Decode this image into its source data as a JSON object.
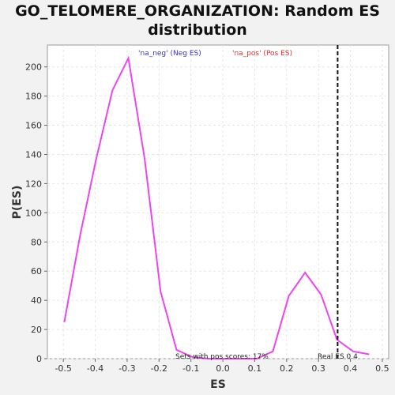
{
  "chart_data": {
    "type": "line",
    "title": "GO_TELOMERE_ORGANIZATION: Random ES distribution",
    "xlabel": "ES",
    "ylabel": "P(ES)",
    "xlim": [
      -0.55,
      0.52
    ],
    "ylim": [
      0,
      215
    ],
    "xticks": [
      "-0.5",
      "-0.4",
      "-0.3",
      "-0.2",
      "-0.1",
      "0.0",
      "0.1",
      "0.2",
      "0.3",
      "0.4",
      "0.5"
    ],
    "xtick_values": [
      -0.5,
      -0.4,
      -0.3,
      -0.2,
      -0.1,
      0.0,
      0.1,
      0.2,
      0.3,
      0.4,
      0.5
    ],
    "yticks": [
      "0",
      "20",
      "40",
      "60",
      "80",
      "100",
      "120",
      "140",
      "160",
      "180",
      "200"
    ],
    "ytick_values": [
      0,
      20,
      40,
      60,
      80,
      100,
      120,
      140,
      160,
      180,
      200
    ],
    "grid": true,
    "legend": [
      {
        "label": "'na_neg' (Neg ES)",
        "color": "#3333cc"
      },
      {
        "label": "'na_pos' (Pos ES)",
        "color": "#e03030"
      }
    ],
    "series": [
      {
        "color": "#ee44ee",
        "x": [
          -0.497,
          -0.447,
          -0.397,
          -0.346,
          -0.296,
          -0.245,
          -0.195,
          -0.145,
          -0.094,
          -0.044,
          0.006,
          0.056,
          0.107,
          0.157,
          0.207,
          0.258,
          0.308,
          0.358,
          0.409,
          0.459
        ],
        "values": [
          25,
          85,
          137,
          184,
          206,
          137,
          46,
          6,
          1,
          0,
          0,
          0,
          0,
          5,
          43,
          59,
          44,
          13,
          5,
          3
        ]
      }
    ],
    "real_es": 0.36,
    "annotations": {
      "pos_scores": "Sets with pos scores: 17%",
      "real_es": "Real ES 0.4"
    }
  }
}
